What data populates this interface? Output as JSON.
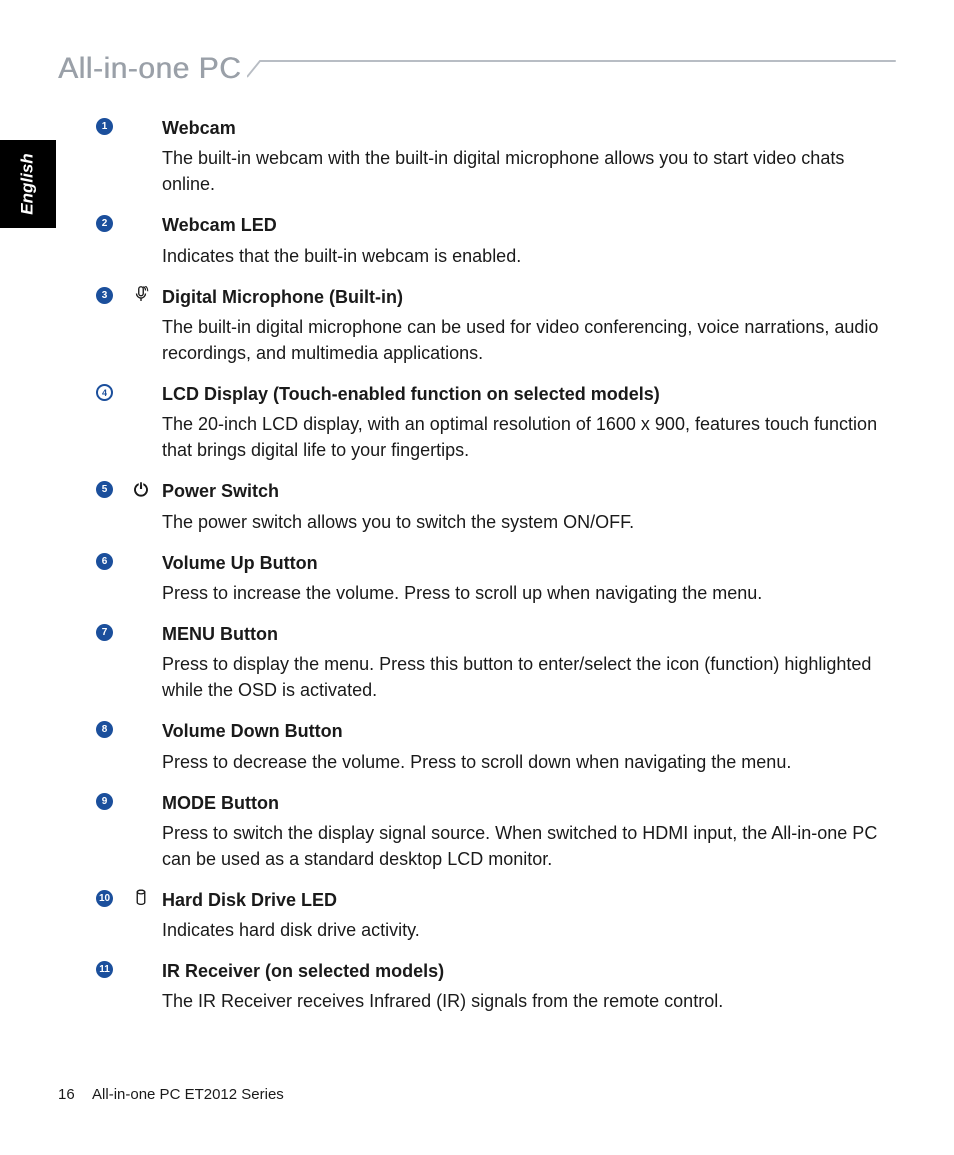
{
  "colors": {
    "badge_blue": "#1b4f9c",
    "header_gray": "#9aa0a8",
    "text": "#1a1a1a",
    "bg": "#ffffff",
    "tab_bg": "#000000",
    "tab_text": "#ffffff"
  },
  "header": {
    "title": "All-in-one PC"
  },
  "language_tab": "English",
  "items": [
    {
      "num": "1",
      "badge_style": "filled",
      "icon": "none",
      "title": "Webcam",
      "desc": "The built-in webcam with the built-in digital microphone allows you to start video chats online."
    },
    {
      "num": "2",
      "badge_style": "filled",
      "icon": "none",
      "title": "Webcam LED",
      "desc": "Indicates that the built-in webcam is enabled."
    },
    {
      "num": "3",
      "badge_style": "filled",
      "icon": "mic",
      "title": "Digital Microphone (Built-in)",
      "desc": "The built-in digital microphone can be used for video conferencing, voice narrations, audio recordings, and multimedia applications."
    },
    {
      "num": "4",
      "badge_style": "outlined",
      "icon": "none",
      "title": "LCD Display (Touch-enabled function on selected models)",
      "desc": "The 20-inch LCD display, with an optimal resolution of 1600 x 900, features touch function that brings digital life to your fingertips."
    },
    {
      "num": "5",
      "badge_style": "filled",
      "icon": "power",
      "title": "Power Switch",
      "desc": "The power switch allows you to switch the system ON/OFF."
    },
    {
      "num": "6",
      "badge_style": "filled",
      "icon": "none",
      "title": "Volume Up Button",
      "desc": "Press to increase the volume. Press to scroll up when navigating the menu."
    },
    {
      "num": "7",
      "badge_style": "filled",
      "icon": "none",
      "title": "MENU Button",
      "desc": "Press to display the menu. Press this button to enter/select the icon (function) highlighted while the OSD is activated."
    },
    {
      "num": "8",
      "badge_style": "filled",
      "icon": "none",
      "title": "Volume Down Button",
      "desc": "Press to decrease the volume. Press to scroll down when navigating the menu."
    },
    {
      "num": "9",
      "badge_style": "filled",
      "icon": "none",
      "title": "MODE Button",
      "desc": "Press to switch the display signal source. When switched to HDMI input, the All-in-one PC can be used as a standard desktop LCD monitor."
    },
    {
      "num": "10",
      "badge_style": "filled",
      "icon": "hdd",
      "title": "Hard Disk Drive LED",
      "desc": "Indicates hard disk drive activity."
    },
    {
      "num": "11",
      "badge_style": "filled",
      "icon": "none",
      "title": "IR Receiver (on selected models)",
      "desc": "The IR Receiver receives Infrared (IR) signals from the remote control."
    }
  ],
  "footer": {
    "page_number": "16",
    "doc_title": "All-in-one PC ET2012 Series"
  }
}
